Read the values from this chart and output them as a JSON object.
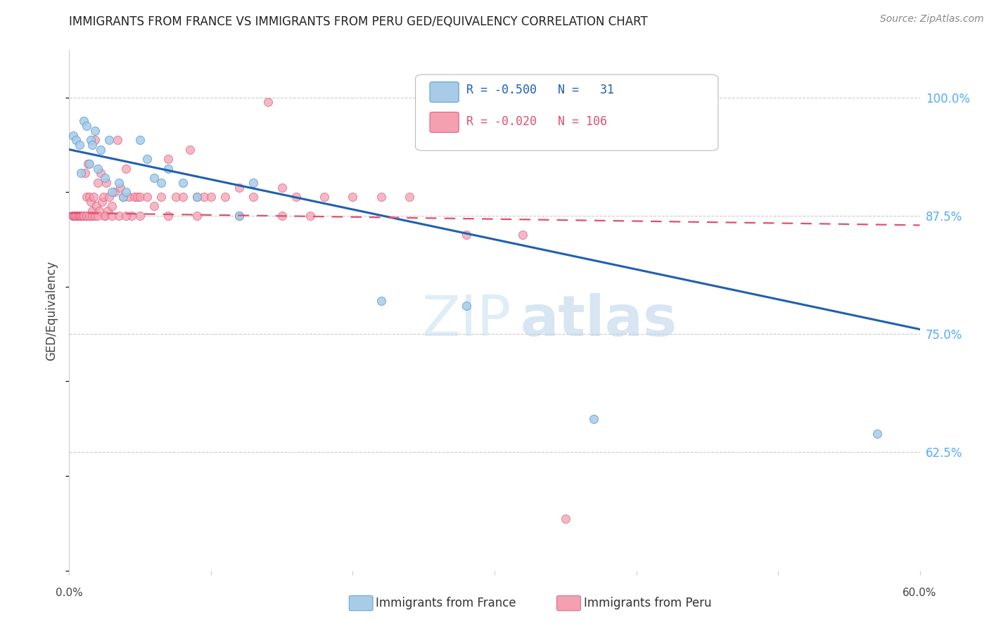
{
  "title": "IMMIGRANTS FROM FRANCE VS IMMIGRANTS FROM PERU GED/EQUIVALENCY CORRELATION CHART",
  "source": "Source: ZipAtlas.com",
  "ylabel": "GED/Equivalency",
  "yticks": [
    0.625,
    0.75,
    0.875,
    1.0
  ],
  "ytick_labels": [
    "62.5%",
    "75.0%",
    "87.5%",
    "100.0%"
  ],
  "xmin": 0.0,
  "xmax": 0.6,
  "ymin": 0.5,
  "ymax": 1.05,
  "france_scatter_color": "#a8cce8",
  "france_scatter_edge": "#5b9fd4",
  "peru_scatter_color": "#f4a0b0",
  "peru_scatter_edge": "#e06080",
  "france_line_color": "#2060b0",
  "peru_line_color": "#e05070",
  "france_points_x": [
    0.003,
    0.005,
    0.007,
    0.008,
    0.01,
    0.012,
    0.014,
    0.015,
    0.016,
    0.018,
    0.02,
    0.022,
    0.025,
    0.028,
    0.03,
    0.035,
    0.038,
    0.04,
    0.05,
    0.055,
    0.06,
    0.065,
    0.07,
    0.08,
    0.09,
    0.12,
    0.13,
    0.22,
    0.28,
    0.37,
    0.57
  ],
  "france_points_y": [
    0.96,
    0.955,
    0.95,
    0.92,
    0.975,
    0.97,
    0.93,
    0.955,
    0.95,
    0.965,
    0.925,
    0.945,
    0.915,
    0.955,
    0.9,
    0.91,
    0.895,
    0.9,
    0.955,
    0.935,
    0.915,
    0.91,
    0.925,
    0.91,
    0.895,
    0.875,
    0.91,
    0.785,
    0.78,
    0.66,
    0.645
  ],
  "peru_points_x": [
    0.003,
    0.003,
    0.003,
    0.004,
    0.004,
    0.004,
    0.004,
    0.005,
    0.005,
    0.006,
    0.006,
    0.007,
    0.007,
    0.008,
    0.008,
    0.009,
    0.009,
    0.01,
    0.01,
    0.01,
    0.011,
    0.012,
    0.013,
    0.014,
    0.015,
    0.015,
    0.016,
    0.017,
    0.018,
    0.019,
    0.02,
    0.021,
    0.022,
    0.023,
    0.024,
    0.025,
    0.026,
    0.027,
    0.028,
    0.03,
    0.032,
    0.034,
    0.036,
    0.038,
    0.04,
    0.042,
    0.044,
    0.046,
    0.048,
    0.05,
    0.055,
    0.06,
    0.065,
    0.07,
    0.075,
    0.08,
    0.085,
    0.09,
    0.095,
    0.1,
    0.11,
    0.12,
    0.13,
    0.14,
    0.15,
    0.16,
    0.18,
    0.2,
    0.22,
    0.24,
    0.003,
    0.003,
    0.004,
    0.004,
    0.005,
    0.005,
    0.005,
    0.006,
    0.006,
    0.006,
    0.007,
    0.007,
    0.008,
    0.008,
    0.009,
    0.01,
    0.01,
    0.012,
    0.012,
    0.014,
    0.016,
    0.018,
    0.02,
    0.025,
    0.03,
    0.035,
    0.04,
    0.05,
    0.07,
    0.09,
    0.12,
    0.15,
    0.17,
    0.28,
    0.32,
    0.35
  ],
  "peru_points_y": [
    0.875,
    0.875,
    0.875,
    0.875,
    0.875,
    0.875,
    0.875,
    0.875,
    0.875,
    0.875,
    0.875,
    0.875,
    0.875,
    0.875,
    0.875,
    0.875,
    0.875,
    0.875,
    0.875,
    0.875,
    0.92,
    0.895,
    0.93,
    0.895,
    0.89,
    0.875,
    0.88,
    0.895,
    0.955,
    0.885,
    0.91,
    0.88,
    0.92,
    0.89,
    0.895,
    0.875,
    0.91,
    0.88,
    0.895,
    0.885,
    0.9,
    0.955,
    0.905,
    0.895,
    0.925,
    0.895,
    0.875,
    0.895,
    0.895,
    0.895,
    0.895,
    0.885,
    0.895,
    0.935,
    0.895,
    0.895,
    0.945,
    0.895,
    0.895,
    0.895,
    0.895,
    0.905,
    0.895,
    0.995,
    0.905,
    0.895,
    0.895,
    0.895,
    0.895,
    0.895,
    0.875,
    0.875,
    0.875,
    0.875,
    0.875,
    0.875,
    0.875,
    0.875,
    0.875,
    0.875,
    0.875,
    0.875,
    0.875,
    0.875,
    0.875,
    0.875,
    0.875,
    0.875,
    0.875,
    0.875,
    0.875,
    0.875,
    0.875,
    0.875,
    0.875,
    0.875,
    0.875,
    0.875,
    0.875,
    0.875,
    0.875,
    0.875,
    0.875,
    0.855,
    0.855,
    0.555
  ]
}
